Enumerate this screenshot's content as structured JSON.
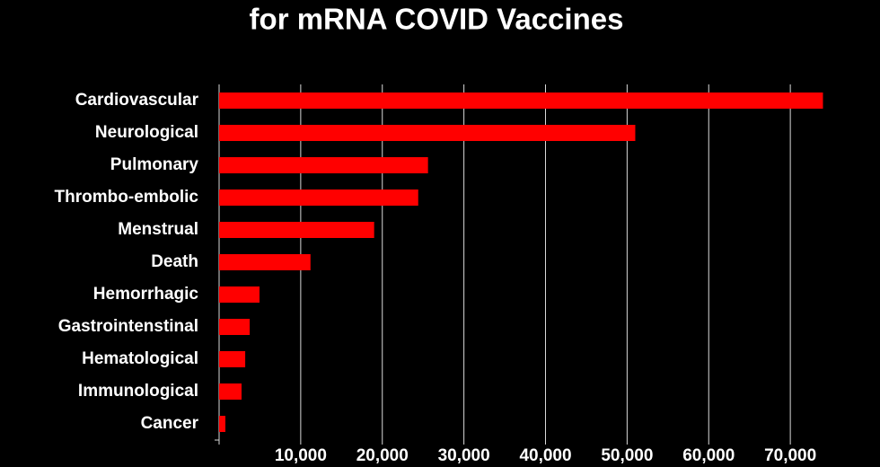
{
  "chart_data": {
    "type": "hbar",
    "title": "for mRNA COVID Vaccines",
    "categories": [
      "Cardiovascular",
      "Neurological",
      "Pulmonary",
      "Thrombo-embolic",
      "Menstrual",
      "Death",
      "Hemorrhagic",
      "Gastrointenstinal",
      "Hematological",
      "Immunological",
      "Cancer"
    ],
    "values": [
      74000,
      51000,
      25600,
      24400,
      19000,
      11200,
      4950,
      3750,
      3200,
      2750,
      770
    ],
    "color": "#ff0000",
    "xlim": [
      0,
      80000
    ],
    "xticks": [
      {
        "value": 10000,
        "label": "10,000"
      },
      {
        "value": 20000,
        "label": "20,000"
      },
      {
        "value": 30000,
        "label": "30,000"
      },
      {
        "value": 40000,
        "label": "40,000"
      },
      {
        "value": 50000,
        "label": "50,000"
      },
      {
        "value": 60000,
        "label": "60,000"
      },
      {
        "value": 70000,
        "label": "70,000"
      }
    ],
    "grid": true
  }
}
